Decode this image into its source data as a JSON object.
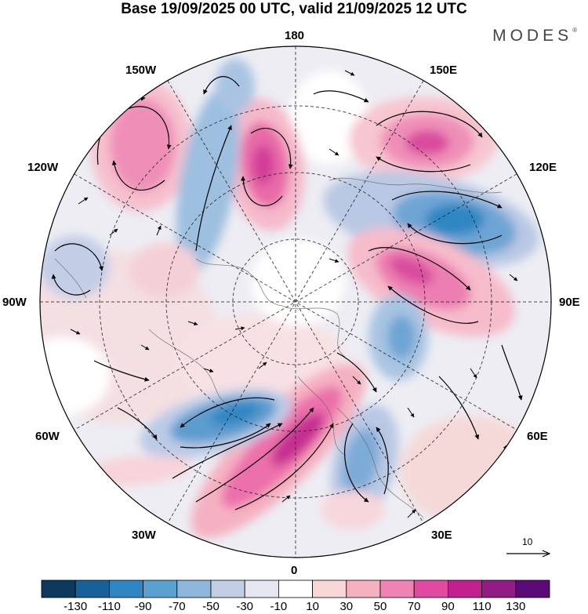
{
  "title": "Base 19/09/2025 00 UTC, valid 21/09/2025 12 UTC",
  "brand": {
    "name": "MODES",
    "mark": "®"
  },
  "longitude_labels": {
    "lon_180": "180",
    "lon_150w": "150W",
    "lon_150e": "150E",
    "lon_120w": "120W",
    "lon_120e": "120E",
    "lon_90w": "90W",
    "lon_90e": "90E",
    "lon_60w": "60W",
    "lon_60e": "60E",
    "lon_30w": "30W",
    "lon_30e": "30E",
    "lon_0": "0"
  },
  "vector_scale": {
    "label": "10"
  },
  "colorbar": {
    "labels": [
      "-130",
      "-110",
      "-90",
      "-70",
      "-50",
      "-30",
      "-10",
      "10",
      "30",
      "50",
      "70",
      "90",
      "110",
      "130"
    ],
    "colors": [
      "#0b3a5c",
      "#17609a",
      "#2f86c2",
      "#5aa0d0",
      "#8fb7dc",
      "#c2cde6",
      "#e6e6f2",
      "#ffffff",
      "#f9d7d9",
      "#f5b1c1",
      "#ef83b1",
      "#e04aa0",
      "#c1208e",
      "#921b86",
      "#5c0a78"
    ]
  },
  "anomaly_centers": [
    {
      "name": "pos-150w",
      "value": 70
    },
    {
      "name": "pos-near-180",
      "value": 90
    },
    {
      "name": "pos-150e",
      "value": 90
    },
    {
      "name": "neg-120e",
      "value": -90
    },
    {
      "name": "pos-90e",
      "value": 90
    },
    {
      "name": "neg-60e",
      "value": -70
    },
    {
      "name": "pos-0",
      "value": 110
    },
    {
      "name": "neg-30e",
      "value": -70
    },
    {
      "name": "neg-60w",
      "value": -90
    },
    {
      "name": "neg-150w",
      "value": -70
    },
    {
      "name": "neg-105w",
      "value": -50
    }
  ]
}
